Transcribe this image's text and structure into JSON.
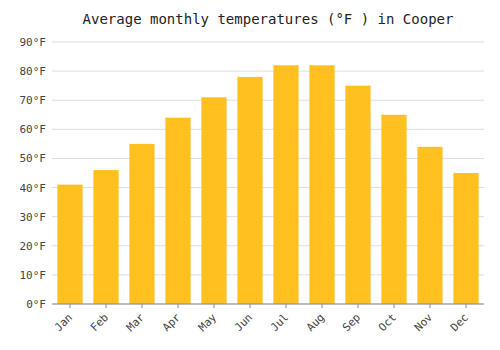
{
  "chart_data": {
    "type": "bar",
    "title": "Average monthly temperatures (°F ) in Cooper",
    "categories": [
      "Jan",
      "Feb",
      "Mar",
      "Apr",
      "May",
      "Jun",
      "Jul",
      "Aug",
      "Sep",
      "Oct",
      "Nov",
      "Dec"
    ],
    "values": [
      41,
      46,
      55,
      64,
      71,
      78,
      82,
      82,
      75,
      65,
      54,
      45
    ],
    "color": "#FFC020",
    "ylim": [
      0,
      90
    ],
    "yticks": [
      {
        "value": 0,
        "label": "0°F"
      },
      {
        "value": 10,
        "label": "10°F"
      },
      {
        "value": 20,
        "label": "20°F"
      },
      {
        "value": 30,
        "label": "30°F"
      },
      {
        "value": 40,
        "label": "40°F"
      },
      {
        "value": 50,
        "label": "50°F"
      },
      {
        "value": 60,
        "label": "60°F"
      },
      {
        "value": 70,
        "label": "70°F"
      },
      {
        "value": 80,
        "label": "80°F"
      },
      {
        "value": 90,
        "label": "90°F"
      }
    ],
    "grid": true
  }
}
